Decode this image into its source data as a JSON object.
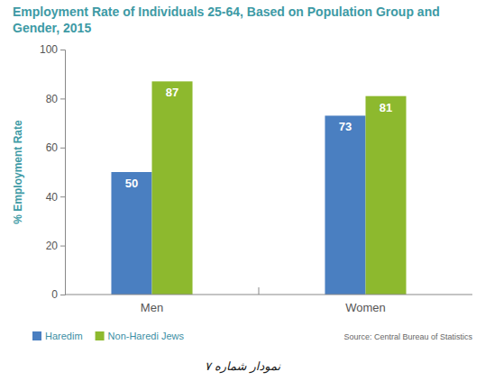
{
  "chart_data": {
    "type": "bar",
    "title": "Employment Rate of Individuals 25-64, Based on Population Group and Gender, 2015",
    "y_label": "% Employment Rate",
    "categories": [
      "Men",
      "Women"
    ],
    "series": [
      {
        "name": "Haredim",
        "color": "#4a7fc1",
        "values": [
          50,
          73
        ]
      },
      {
        "name": "Non-Haredi Jews",
        "color": "#8db92e",
        "values": [
          87,
          81
        ]
      }
    ],
    "ylim": [
      0,
      100
    ],
    "yticks": [
      0,
      20,
      40,
      60,
      80,
      100
    ],
    "grid": false,
    "legend": "bottom-left",
    "data_labels": true,
    "source": "Source: Central Bureau of Statistics",
    "caption": "نمودار شماره ۷"
  }
}
